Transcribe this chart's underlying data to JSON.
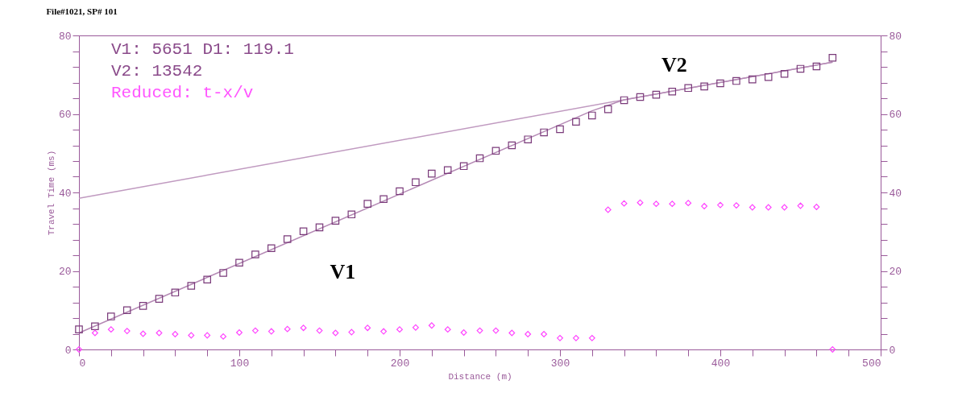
{
  "chart_data": {
    "type": "scatter",
    "title": "File#1021, SP# 101",
    "xlabel": "Distance (m)",
    "ylabel": "Travel Time (ms)",
    "xlim": [
      0,
      500
    ],
    "xticks": [
      0,
      {
        "value": 20,
        "label": null
      },
      {
        "value": 40,
        "label": null
      },
      {
        "value": 60,
        "label": null
      },
      {
        "value": 80,
        "label": null
      },
      100,
      {
        "value": 120,
        "label": null
      },
      {
        "value": 140,
        "label": null
      },
      {
        "value": 160,
        "label": null
      },
      {
        "value": 180,
        "label": null
      },
      200,
      {
        "value": 220,
        "label": null
      },
      {
        "value": 240,
        "label": null
      },
      {
        "value": 260,
        "label": null
      },
      {
        "value": 280,
        "label": null
      },
      300,
      {
        "value": 320,
        "label": null
      },
      {
        "value": 340,
        "label": null
      },
      {
        "value": 360,
        "label": null
      },
      {
        "value": 380,
        "label": null
      },
      400,
      {
        "value": 420,
        "label": null
      },
      {
        "value": 440,
        "label": null
      },
      {
        "value": 460,
        "label": null
      },
      {
        "value": 480,
        "label": null
      },
      500
    ],
    "ylim": [
      0,
      80
    ],
    "yticks": [
      0,
      {
        "value": 4,
        "label": null
      },
      {
        "value": 8,
        "label": null
      },
      {
        "value": 12,
        "label": null
      },
      {
        "value": 16,
        "label": null
      },
      20,
      {
        "value": 24,
        "label": null
      },
      {
        "value": 28,
        "label": null
      },
      {
        "value": 32,
        "label": null
      },
      {
        "value": 36,
        "label": null
      },
      40,
      {
        "value": 44,
        "label": null
      },
      {
        "value": 48,
        "label": null
      },
      {
        "value": 52,
        "label": null
      },
      {
        "value": 56,
        "label": null
      },
      60,
      {
        "value": 64,
        "label": null
      },
      {
        "value": 68,
        "label": null
      },
      {
        "value": 72,
        "label": null
      },
      {
        "value": 76,
        "label": null
      },
      80
    ],
    "y2lim": [
      0,
      80
    ],
    "y2ticks": [
      0,
      {
        "value": 4,
        "label": null
      },
      {
        "value": 8,
        "label": null
      },
      {
        "value": 12,
        "label": null
      },
      {
        "value": 16,
        "label": null
      },
      20,
      {
        "value": 24,
        "label": null
      },
      {
        "value": 28,
        "label": null
      },
      {
        "value": 32,
        "label": null
      },
      {
        "value": 36,
        "label": null
      },
      40,
      {
        "value": 44,
        "label": null
      },
      {
        "value": 48,
        "label": null
      },
      {
        "value": 52,
        "label": null
      },
      {
        "value": 56,
        "label": null
      },
      60,
      {
        "value": 64,
        "label": null
      },
      {
        "value": 68,
        "label": null
      },
      {
        "value": 72,
        "label": null
      },
      {
        "value": 76,
        "label": null
      },
      80
    ],
    "grid": false,
    "series": [
      {
        "type": "line",
        "name": "V2",
        "color": "#c09ac0",
        "line_style": "solid",
        "marker": "none",
        "x": [
          0,
          470
        ],
        "values": [
          38.5,
          73.2
        ]
      },
      {
        "type": "line",
        "name": "V1",
        "color": "#b58ab5",
        "line_style": "solid",
        "marker": "none",
        "x": [
          0,
          320,
          340,
          470
        ],
        "values": [
          4.2,
          60.8,
          63.6,
          73.2
        ]
      },
      {
        "color": "#7a3a7a",
        "marker": "square",
        "x": [
          0,
          10,
          20,
          30,
          40,
          50,
          60,
          70,
          80,
          90,
          100,
          110,
          120,
          130,
          140,
          150,
          160,
          170,
          180,
          190,
          200,
          210,
          220,
          230,
          240,
          250,
          260,
          270,
          280,
          290,
          300,
          310,
          320,
          330,
          340,
          350,
          360,
          370,
          380,
          390,
          400,
          410,
          420,
          430,
          440,
          450,
          460,
          470
        ],
        "values": [
          5.1,
          5.9,
          8.4,
          10.0,
          11.1,
          12.9,
          14.5,
          16.2,
          17.8,
          19.5,
          22.1,
          24.2,
          25.8,
          28.1,
          30.1,
          31.1,
          32.8,
          34.4,
          37.1,
          38.3,
          40.3,
          42.6,
          44.8,
          45.7,
          46.7,
          48.7,
          50.6,
          52.0,
          53.5,
          55.3,
          56.1,
          58.0,
          59.6,
          61.2,
          63.5,
          64.3,
          64.9,
          65.7,
          66.6,
          67.0,
          67.8,
          68.4,
          68.8,
          69.4,
          70.2,
          71.5,
          72.1,
          74.3
        ]
      },
      {
        "color": "#ff44ff",
        "marker": "diamond",
        "x": [
          0,
          10,
          20,
          30,
          40,
          50,
          60,
          70,
          80,
          90,
          100,
          110,
          120,
          130,
          140,
          150,
          160,
          170,
          180,
          190,
          200,
          210,
          220,
          230,
          240,
          250,
          260,
          270,
          280,
          290,
          300,
          310,
          320,
          330,
          340,
          350,
          360,
          370,
          380,
          390,
          400,
          410,
          420,
          430,
          440,
          450,
          460,
          470
        ],
        "values": [
          0,
          4.2,
          5.1,
          4.7,
          4.0,
          4.2,
          3.9,
          3.6,
          3.6,
          3.3,
          4.3,
          4.8,
          4.6,
          5.2,
          5.5,
          4.8,
          4.2,
          4.4,
          5.5,
          4.6,
          5.1,
          5.6,
          6.1,
          5.1,
          4.3,
          4.8,
          4.8,
          4.2,
          3.9,
          3.9,
          2.9,
          2.9,
          2.9,
          35.6,
          37.2,
          37.4,
          37.1,
          37.1,
          37.3,
          36.5,
          36.8,
          36.7,
          36.2,
          36.2,
          36.2,
          36.6,
          36.3,
          0
        ]
      }
    ],
    "annotations": [
      "V1: 5651 D1: 119.1",
      "V2: 13542",
      "Reduced: t-x/v"
    ]
  }
}
